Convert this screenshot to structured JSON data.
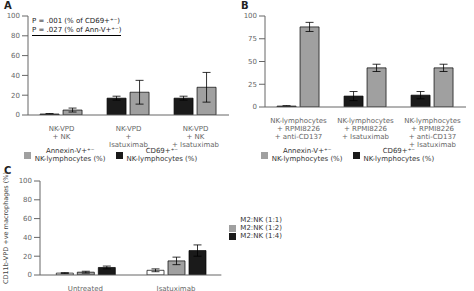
{
  "chart_data": [
    {
      "type": "bar",
      "title": "A",
      "categories": [
        "NK-VPD\n+ NK",
        "NK-VPD\n+\nIsatuximab",
        "NK-VPD\n+ NK\n+ Isatuximab"
      ],
      "series": [
        {
          "name": "CD69+⁺⁻\nNK-lymphocytes (%)",
          "color": "#1a1a1a",
          "values": [
            1.0,
            17.0,
            17.0
          ],
          "errors": [
            0.5,
            2.0,
            2.0
          ]
        },
        {
          "name": "Annexin-V+⁺⁻\nNK-lymphocytes (%)",
          "color": "#a0a0a0",
          "values": [
            5.0,
            23.0,
            28.0
          ],
          "errors": [
            2.0,
            12.0,
            15.0
          ]
        }
      ],
      "ylim": [
        0,
        100
      ],
      "yticks": [
        0,
        20,
        40,
        60,
        80,
        100
      ],
      "grid": false,
      "legend": "bottom",
      "annotations": [
        "P = .001 (% of CD69+⁺⁻)",
        "P = .027 (% of Ann-V+⁺⁻)"
      ]
    },
    {
      "type": "bar",
      "title": "B",
      "categories": [
        "NK-lymphocytes\n+ RPMI8226\n+ anti-CD137",
        "NK-lymphocytes\n+ RPMI8226\n+ Isatuximab",
        "NK-lymphocytes\n+ RPMI8226\n+ anti-CD137\n+ Isatuximab"
      ],
      "series": [
        {
          "name": "CD69+⁺⁻\nNK-lymphocytes (%)",
          "color": "#1a1a1a",
          "values": [
            1.0,
            12.0,
            13.0
          ],
          "errors": [
            0.5,
            5.0,
            4.0
          ]
        },
        {
          "name": "Annexin-V+⁺⁻\nNK-lymphocytes (%)",
          "color": "#a0a0a0",
          "values": [
            88.0,
            43.0,
            43.0
          ],
          "errors": [
            5.0,
            4.0,
            4.0
          ]
        }
      ],
      "ylim": [
        0,
        100
      ],
      "yticks": [
        0,
        25,
        50,
        75,
        100
      ],
      "grid": false,
      "legend": "bottom"
    },
    {
      "type": "bar",
      "title": "C",
      "categories": [
        "Untreated",
        "Isatuximab"
      ],
      "series": [
        {
          "name": "M2:NK (1:1)",
          "color": "#ffffff",
          "values": [
            2.0,
            5.0
          ],
          "errors": [
            0.5,
            1.5
          ]
        },
        {
          "name": "M2:NK (1:2)",
          "color": "#a0a0a0",
          "values": [
            3.0,
            15.0
          ],
          "errors": [
            1.0,
            4.0
          ]
        },
        {
          "name": "M2:NK (1:4)",
          "color": "#1a1a1a",
          "values": [
            8.0,
            26.0
          ],
          "errors": [
            1.5,
            6.0
          ]
        }
      ],
      "ylim": [
        0,
        100
      ],
      "yticks": [
        0,
        20,
        40,
        60,
        80,
        100
      ],
      "grid": false,
      "legend": "right",
      "y_label": "CD11b-VPD +ve macrophages (%)"
    }
  ]
}
